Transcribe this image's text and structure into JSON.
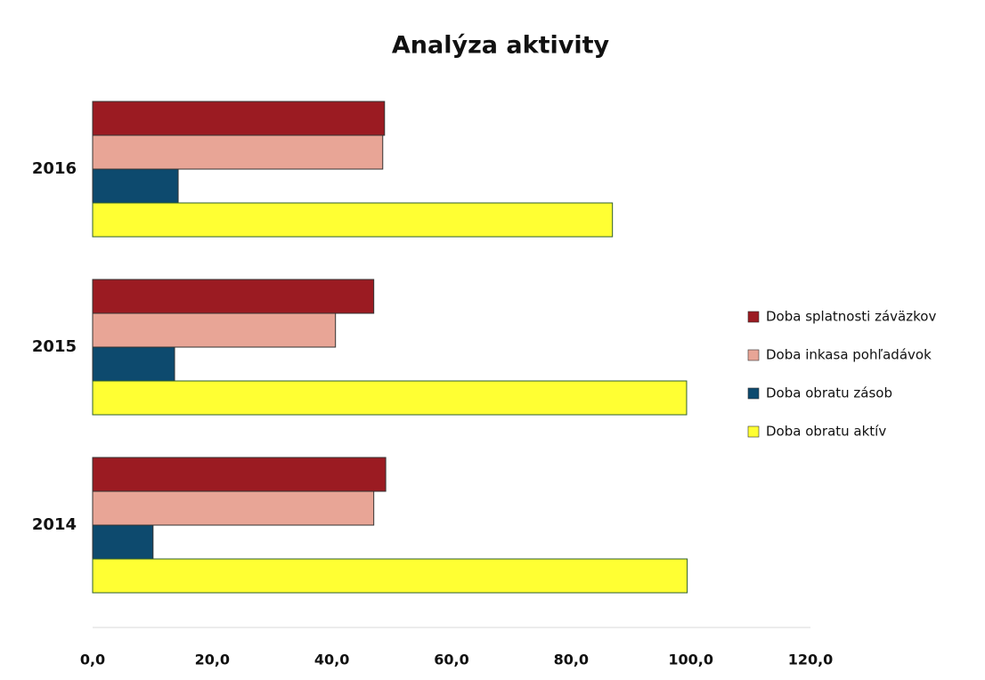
{
  "chart_data": {
    "type": "hbar",
    "title": "Analýza aktivity",
    "categories": [
      "2014",
      "2015",
      "2016"
    ],
    "series": [
      {
        "name": "Doba splatnosti záväzkov",
        "color": "#9b1b22",
        "values": [
          49.0,
          47.0,
          48.8
        ]
      },
      {
        "name": "Doba inkasa pohľadávok",
        "color": "#e8a596",
        "values": [
          47.0,
          40.6,
          48.5
        ]
      },
      {
        "name": "Doba obratu zásob",
        "color": "#0d4a6e",
        "values": [
          10.1,
          13.7,
          14.3
        ]
      },
      {
        "name": "Doba obratu aktív",
        "color": "#ffff33",
        "values": [
          99.4,
          99.3,
          86.9
        ]
      }
    ],
    "xlim": [
      0,
      120
    ],
    "xticks": [
      {
        "value": 0,
        "label": "0,0"
      },
      {
        "value": 20,
        "label": "20,0"
      },
      {
        "value": 40,
        "label": "40,0"
      },
      {
        "value": 60,
        "label": "60,0"
      },
      {
        "value": 80,
        "label": "80,0"
      },
      {
        "value": 100,
        "label": "100,0"
      },
      {
        "value": 120,
        "label": "120,0"
      }
    ],
    "legend": "right"
  }
}
